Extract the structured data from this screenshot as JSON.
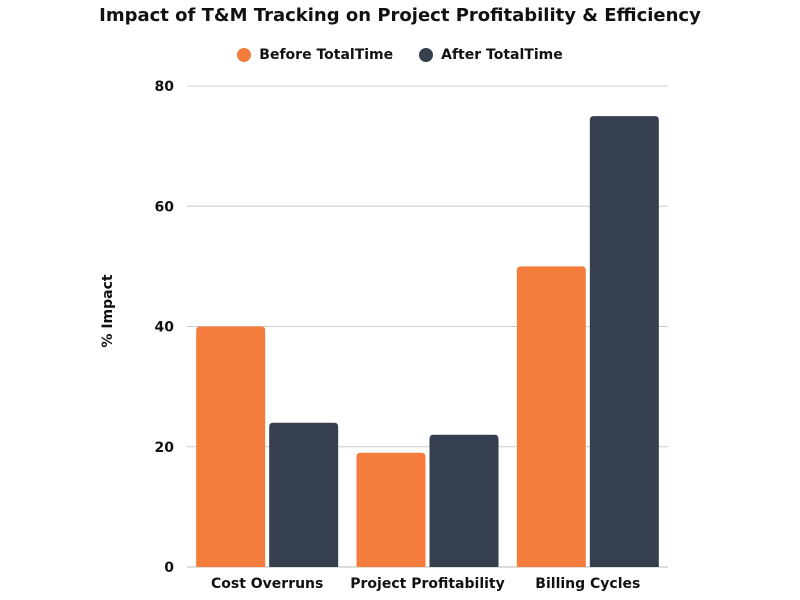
{
  "chart_data": {
    "type": "bar",
    "title": "Impact of T&M Tracking on Project Profitability & Efficiency",
    "xlabel": "",
    "ylabel": "% Impact",
    "ylim": [
      0,
      80
    ],
    "yticks": [
      0,
      20,
      40,
      60,
      80
    ],
    "grid": true,
    "legend_position": "top-center",
    "categories": [
      "Cost Overruns",
      "Project Profitability",
      "Billing Cycles"
    ],
    "series": [
      {
        "name": "Before TotalTime",
        "color": "#f47c3c",
        "values": [
          40,
          19,
          50
        ]
      },
      {
        "name": "After TotalTime",
        "color": "#353f4e",
        "values": [
          24,
          22,
          75
        ]
      }
    ]
  }
}
